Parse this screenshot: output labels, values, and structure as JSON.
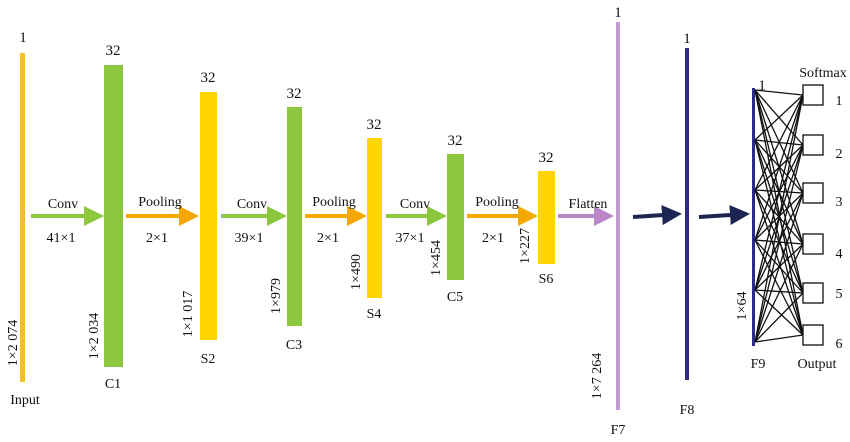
{
  "colors": {
    "input": "#F2C027",
    "conv": "#8DC63F",
    "pool": "#FFD400",
    "flat": "#C39BD3",
    "dense": "#2E2A8C",
    "arrow_conv": "#8DC63F",
    "arrow_pool": "#F5A800",
    "arrow_flat": "#B986C8",
    "arrow_dense": "#1B2452",
    "lines": "#111111"
  },
  "layers": [
    {
      "id": "input",
      "name": "Input",
      "channels": "1",
      "size": "1×2 074"
    },
    {
      "id": "c1",
      "name": "C1",
      "channels": "32",
      "size": "1×2 034"
    },
    {
      "id": "s2",
      "name": "S2",
      "channels": "32",
      "size": "1×1 017"
    },
    {
      "id": "c3",
      "name": "C3",
      "channels": "32",
      "size": "1×979"
    },
    {
      "id": "s4",
      "name": "S4",
      "channels": "32",
      "size": "1×490"
    },
    {
      "id": "c5",
      "name": "C5",
      "channels": "32",
      "size": "1×454"
    },
    {
      "id": "s6",
      "name": "S6",
      "channels": "32",
      "size": "1×227"
    },
    {
      "id": "f7",
      "name": "F7",
      "channels": "1",
      "size": "1×7 264"
    },
    {
      "id": "f8",
      "name": "F8",
      "channels": "1",
      "size": ""
    },
    {
      "id": "f9",
      "name": "F9",
      "channels": "1",
      "size": "1×64"
    }
  ],
  "operations": [
    {
      "label": "Conv",
      "param": "41×1"
    },
    {
      "label": "Pooling",
      "param": "2×1"
    },
    {
      "label": "Conv",
      "param": "39×1"
    },
    {
      "label": "Pooling",
      "param": "2×1"
    },
    {
      "label": "Conv",
      "param": "37×1"
    },
    {
      "label": "Pooling",
      "param": "2×1"
    },
    {
      "label": "Flatten",
      "param": ""
    }
  ],
  "output": {
    "softmax_label": "Softmax",
    "output_label": "Output",
    "nodes": [
      "1",
      "2",
      "3",
      "4",
      "5",
      "6"
    ]
  }
}
